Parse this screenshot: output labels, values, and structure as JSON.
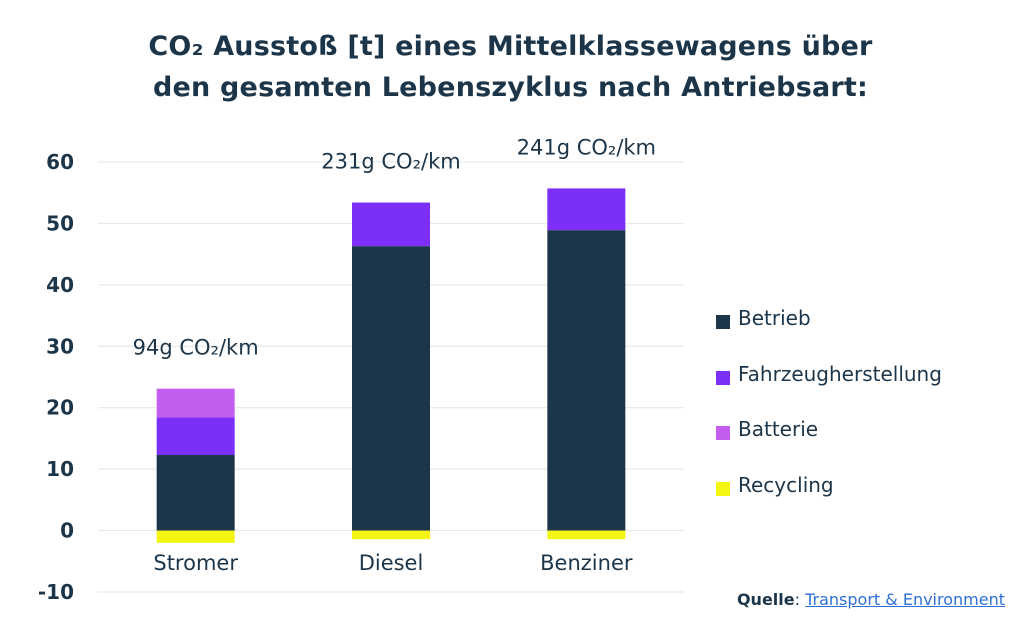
{
  "title": {
    "line1": "CO₂ Ausstoß [t] eines Mittelklassewagens über",
    "line2": "den gesamten Lebenszyklus nach Antriebsart:"
  },
  "legend": {
    "items": [
      {
        "label": "Betrieb",
        "color": "#1c3549"
      },
      {
        "label": "Fahrzeugherstellung",
        "color": "#7b2ff7"
      },
      {
        "label": "Batterie",
        "color": "#c35df0"
      },
      {
        "label": "Recycling",
        "color": "#f5f514"
      }
    ]
  },
  "source": {
    "label": "Quelle",
    "separator": ": ",
    "link_text": "Transport & Environment"
  },
  "chart_data": {
    "type": "bar",
    "stacked": true,
    "title": "CO₂ Ausstoß [t] eines Mittelklassewagens über den gesamten Lebenszyklus nach Antriebsart:",
    "categories": [
      "Stromer",
      "Diesel",
      "Benziner"
    ],
    "series": [
      {
        "name": "Betrieb",
        "color": "#1c3549",
        "values": [
          12.3,
          46.3,
          48.9
        ]
      },
      {
        "name": "Fahrzeugherstellung",
        "color": "#7b2ff7",
        "values": [
          6.1,
          7.1,
          6.8
        ]
      },
      {
        "name": "Batterie",
        "color": "#c35df0",
        "values": [
          4.7,
          0,
          0
        ]
      },
      {
        "name": "Recycling",
        "color": "#f5f514",
        "values": [
          -2.0,
          -1.4,
          -1.4
        ]
      }
    ],
    "data_labels": [
      "94g CO₂/km",
      "231g CO₂/km",
      "241g CO₂/km"
    ],
    "yticks": [
      60,
      50,
      40,
      30,
      20,
      10,
      0,
      -10
    ],
    "ylim": [
      -10,
      60
    ],
    "xlabel": "",
    "ylabel": "",
    "grid": true,
    "legend_position": "right"
  }
}
